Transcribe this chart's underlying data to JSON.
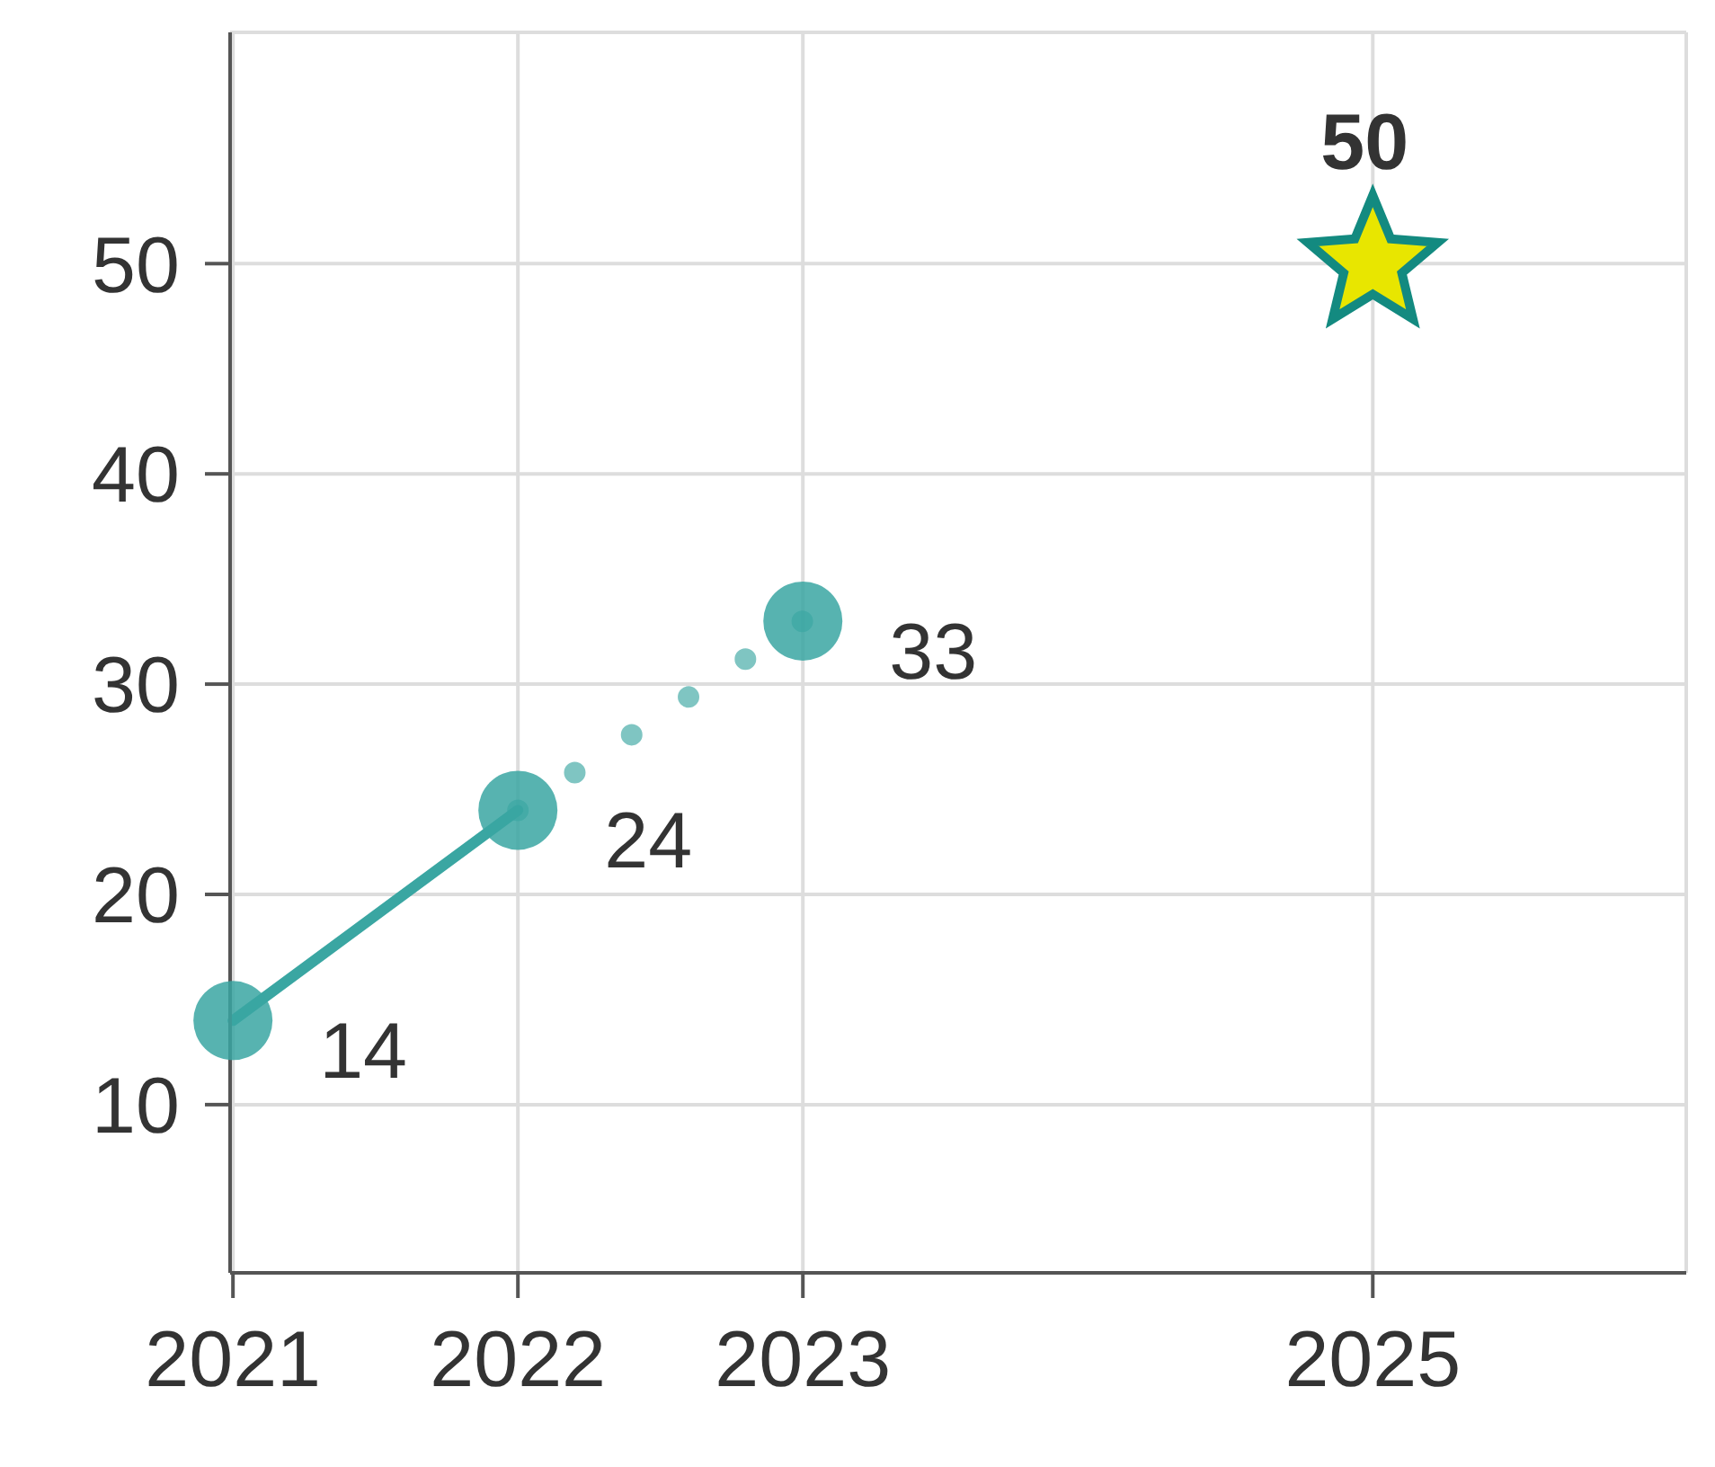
{
  "chart_data": {
    "type": "line",
    "xlim": [
      2020.99,
      2026.1
    ],
    "xticks": [
      2021,
      2022,
      2023,
      2025
    ],
    "ylim": [
      2,
      61
    ],
    "yticks": [
      10,
      20,
      30,
      40,
      50
    ],
    "grid": true,
    "legend": false,
    "series": [
      {
        "x": [
          2021,
          2022
        ],
        "values": [
          14,
          24
        ],
        "color": "#3aa6a2",
        "line_style": "solid",
        "marker": "circle",
        "value_labels": [
          "14",
          "24"
        ]
      },
      {
        "x": [
          2022,
          2023
        ],
        "values": [
          24,
          33
        ],
        "color": "#3aa6a2",
        "line_style": "dotted",
        "marker": "circle",
        "value_labels": [
          null,
          "33"
        ]
      },
      {
        "type": "scatter",
        "x": [
          2025
        ],
        "values": [
          50
        ],
        "color": "#e8e600",
        "marker": "star",
        "value_labels": [
          "50"
        ]
      }
    ]
  }
}
